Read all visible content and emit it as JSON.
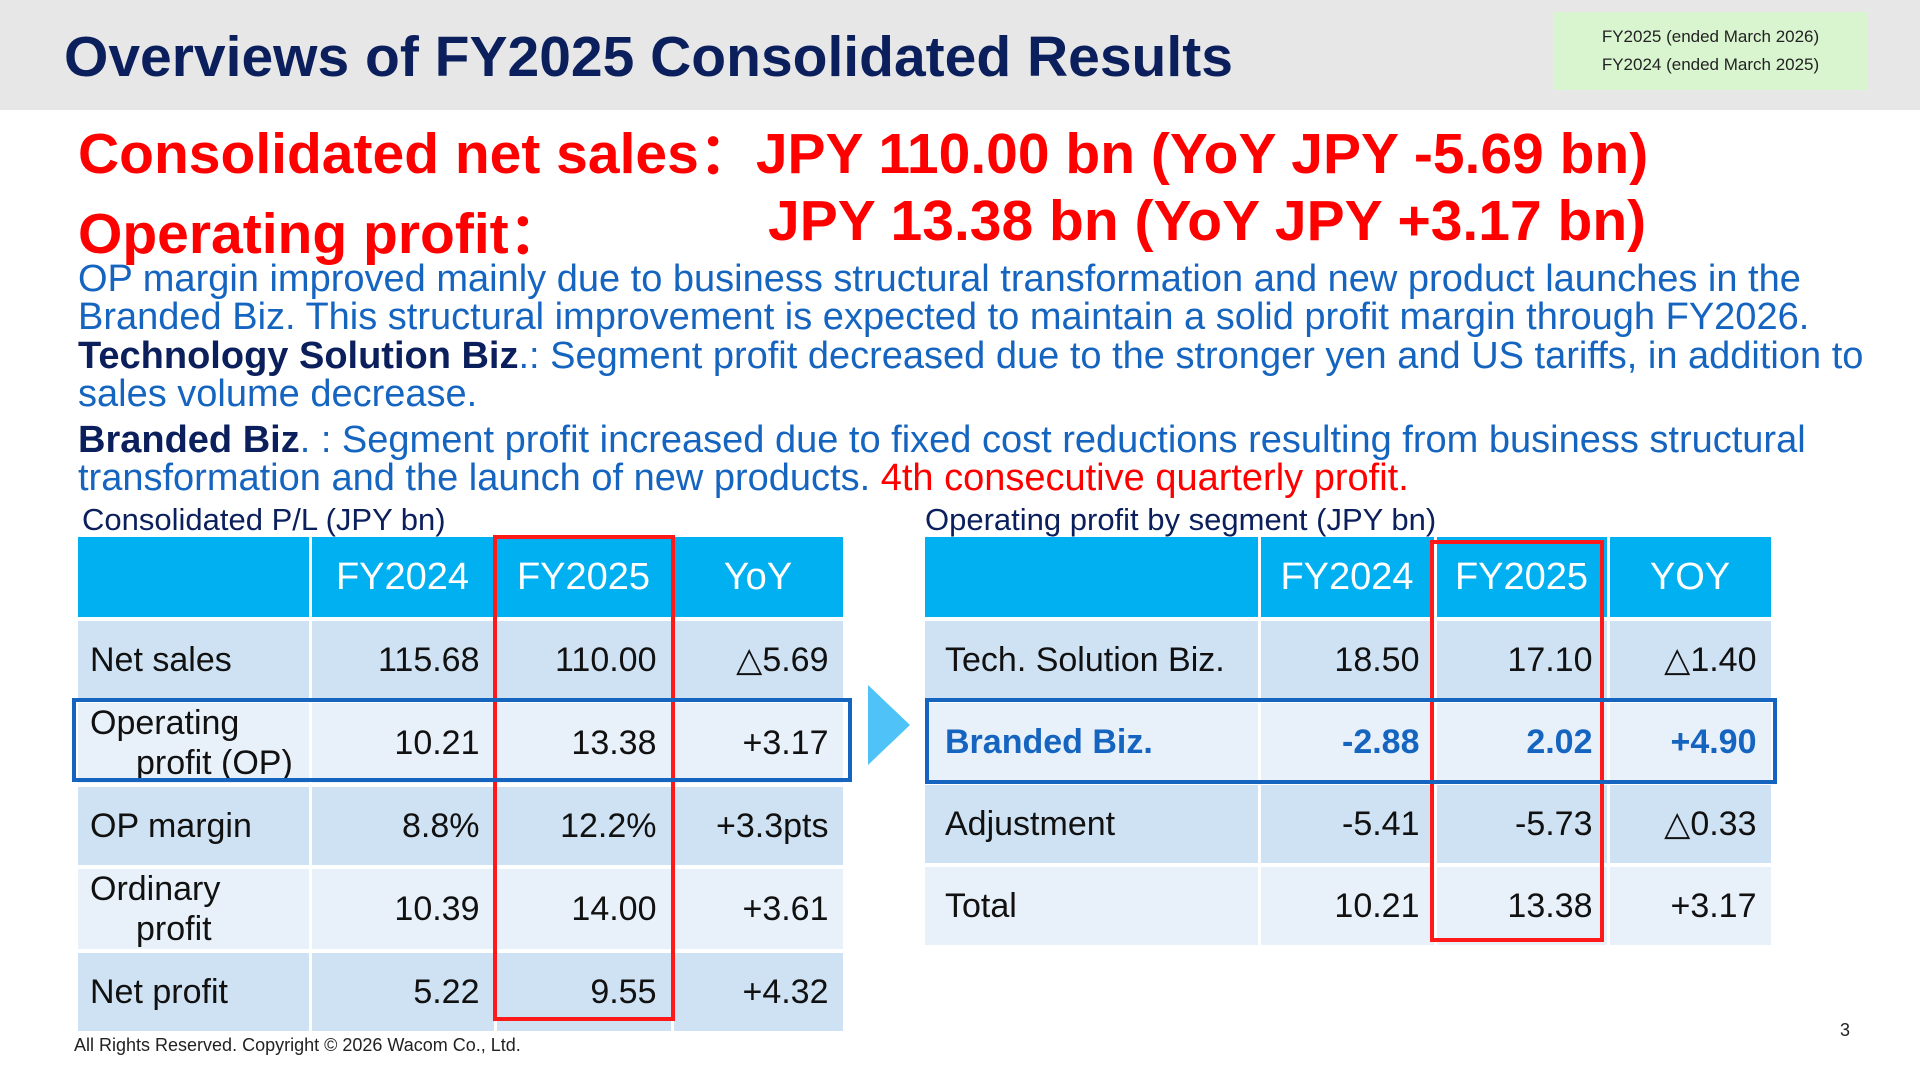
{
  "header": {
    "title": "Overviews of FY2025 Consolidated Results",
    "fy_notes": [
      "FY2025 (ended March 2026)",
      "FY2024 (ended March 2025)"
    ]
  },
  "headlines": {
    "sales_label": "Consolidated net sales：",
    "sales_value": "JPY  110.00 bn (YoY JPY  -5.69 bn)",
    "op_label": "Operating profit：",
    "op_value": "JPY    13.38 bn (YoY JPY +3.17 bn)"
  },
  "paragraphs": {
    "p1": "OP margin improved mainly due to business structural transformation and new product launches in the Branded Biz. This structural improvement is expected to maintain a solid profit margin through FY2026.",
    "p2_label": "Technology Solution Biz",
    "p2_text": ".: Segment profit decreased due to the stronger yen and US tariffs, in addition to sales volume decrease.",
    "p3_label": "Branded Biz",
    "p3_text": ". : Segment profit increased due to fixed cost reductions resulting from business structural transformation and the launch of new products. ",
    "p3_red": "4th consecutive quarterly profit."
  },
  "pl_table": {
    "caption": "Consolidated P/L (JPY bn)",
    "headers": [
      "",
      "FY2024",
      "FY2025",
      "YoY"
    ],
    "rows": [
      {
        "label_1": "Net sales",
        "label_2": "",
        "fy2024": "115.68",
        "fy2025": "110.00",
        "yoy": "△5.69"
      },
      {
        "label_1": "Operating",
        "label_2": "profit (OP)",
        "fy2024": "10.21",
        "fy2025": "13.38",
        "yoy": "+3.17"
      },
      {
        "label_1": "OP margin",
        "label_2": "",
        "fy2024": "8.8%",
        "fy2025": "12.2%",
        "yoy": "+3.3pts"
      },
      {
        "label_1": "Ordinary",
        "label_2": "profit",
        "fy2024": "10.39",
        "fy2025": "14.00",
        "yoy": "+3.61"
      },
      {
        "label_1": "Net profit",
        "label_2": "",
        "fy2024": "5.22",
        "fy2025": "9.55",
        "yoy": "+4.32"
      }
    ]
  },
  "segment_table": {
    "caption": "Operating profit by segment (JPY bn)",
    "headers": [
      "",
      "FY2024",
      "FY2025",
      "YOY"
    ],
    "rows": [
      {
        "label": "Tech. Solution Biz.",
        "fy2024": "18.50",
        "fy2025": "17.10",
        "yoy": "△1.40"
      },
      {
        "label": "Branded Biz.",
        "fy2024": "-2.88",
        "fy2025": "2.02",
        "yoy": "+4.90"
      },
      {
        "label": "Adjustment",
        "fy2024": "-5.41",
        "fy2025": "-5.73",
        "yoy": "△0.33"
      },
      {
        "label": "Total",
        "fy2024": "10.21",
        "fy2025": "13.38",
        "yoy": "+3.17"
      }
    ]
  },
  "footer": {
    "copyright": "All Rights Reserved. Copyright © 2026 Wacom Co., Ltd.",
    "page_number": "3"
  },
  "colors": {
    "title": "#0b1f5c",
    "headline": "#ff0000",
    "body_blue": "#1565c0",
    "table_header": "#00b0f0",
    "row_dark": "#cfe2f3",
    "row_light": "#e8f0fa",
    "highlight_red": "#ff1a1a",
    "highlight_blue": "#1565c0"
  }
}
